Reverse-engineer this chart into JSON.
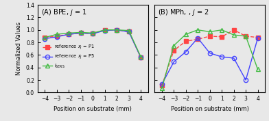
{
  "A_x": [
    -4,
    -3,
    -2,
    -1,
    0,
    1,
    2,
    3,
    4
  ],
  "A_P1": [
    0.88,
    0.9,
    0.93,
    0.95,
    0.94,
    1.0,
    1.0,
    0.97,
    0.56
  ],
  "A_P5": [
    0.86,
    0.89,
    0.93,
    0.95,
    0.94,
    0.99,
    1.0,
    0.97,
    0.56
  ],
  "A_SERS": [
    0.88,
    0.93,
    0.95,
    0.96,
    0.95,
    1.0,
    1.0,
    0.99,
    0.57
  ],
  "B_x": [
    -4,
    -3,
    -2,
    -1,
    0,
    1,
    2,
    3,
    4
  ],
  "B_P1": [
    0.11,
    0.67,
    0.82,
    0.85,
    0.9,
    0.89,
    1.0,
    0.9,
    0.88
  ],
  "B_P5": [
    0.13,
    0.49,
    0.65,
    0.87,
    0.63,
    0.57,
    0.55,
    0.2,
    0.87
  ],
  "B_SERS": [
    0.07,
    0.75,
    0.93,
    1.0,
    0.97,
    1.0,
    0.92,
    0.9,
    0.37
  ],
  "color_P1": "#ff4444",
  "color_P5": "#4444ff",
  "color_SERS": "#44bb44",
  "title_A": "(A) BPE, $\\it{j}$ = 1",
  "title_B": "(B) MPh, , $\\it{j}$ = 2",
  "xlabel": "Position on substrate (mm)",
  "ylabel": "Normalized Values",
  "ylim": [
    0.0,
    1.4
  ],
  "yticks": [
    0.0,
    0.2,
    0.4,
    0.6,
    0.8,
    1.0,
    1.2,
    1.4
  ],
  "xticks": [
    -4,
    -3,
    -2,
    -1,
    0,
    1,
    2,
    3,
    4
  ],
  "bg_color": "#e8e8e8",
  "legend_P1": "reference $x_j$ = P1",
  "legend_P5": "reference $x_j$ = P5",
  "legend_SERS": "$I_{\\rm SERS}$"
}
